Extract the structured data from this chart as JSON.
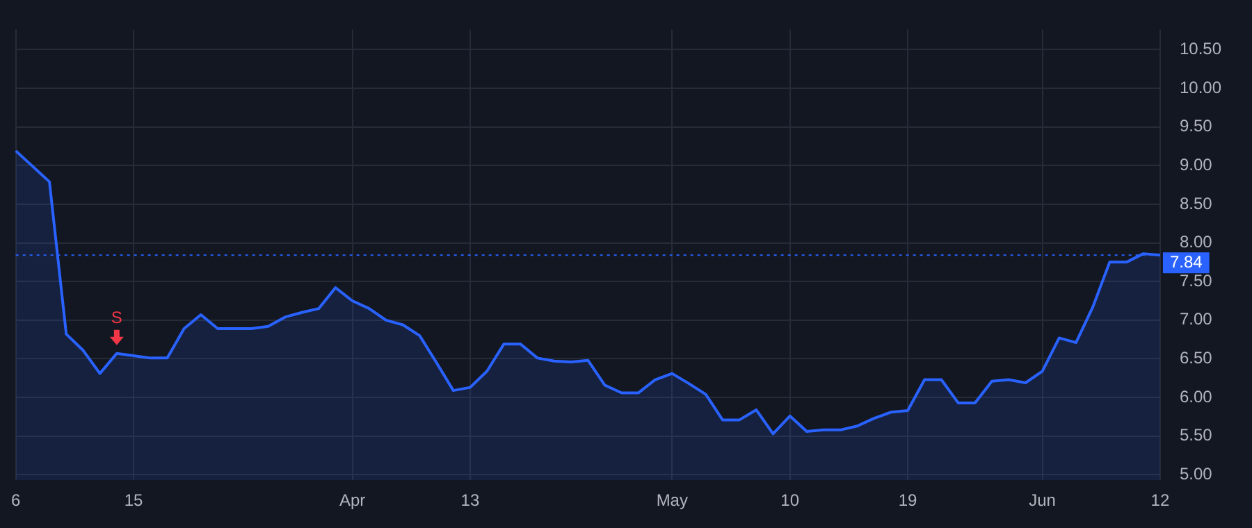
{
  "chart_data": {
    "type": "area",
    "categories": [
      "6",
      null,
      null,
      null,
      null,
      null,
      null,
      "15",
      null,
      null,
      null,
      null,
      null,
      null,
      null,
      null,
      null,
      null,
      null,
      null,
      "Apr",
      null,
      null,
      null,
      null,
      null,
      null,
      "13",
      null,
      null,
      null,
      null,
      null,
      null,
      null,
      null,
      null,
      null,
      null,
      "May",
      null,
      null,
      null,
      null,
      null,
      null,
      "10",
      null,
      null,
      null,
      null,
      null,
      null,
      "19",
      null,
      null,
      null,
      null,
      null,
      null,
      null,
      "Jun",
      null,
      null,
      null,
      null,
      null,
      null,
      "12"
    ],
    "series": [
      {
        "color": "#2962ff",
        "values": [
          9.19,
          8.99,
          8.79,
          6.82,
          6.61,
          6.31,
          6.57,
          6.54,
          6.51,
          6.51,
          6.89,
          7.07,
          6.89,
          6.89,
          6.89,
          6.92,
          7.04,
          7.1,
          7.15,
          7.42,
          7.25,
          7.15,
          7.0,
          6.94,
          6.8,
          6.45,
          6.09,
          6.13,
          6.34,
          6.69,
          6.69,
          6.51,
          6.47,
          6.46,
          6.48,
          6.16,
          6.06,
          6.06,
          6.23,
          6.31,
          6.18,
          6.04,
          5.71,
          5.71,
          5.84,
          5.53,
          5.76,
          5.56,
          5.58,
          5.58,
          5.63,
          5.73,
          5.81,
          5.83,
          6.23,
          6.23,
          5.93,
          5.93,
          6.21,
          6.23,
          6.19,
          6.34,
          6.77,
          6.71,
          7.17,
          7.75,
          7.75,
          7.86,
          7.84
        ]
      }
    ],
    "ylim": [
      4.93,
      10.76
    ],
    "yticks": [
      {
        "value": 5,
        "label": "5.00"
      },
      {
        "value": 5.5,
        "label": "5.50"
      },
      {
        "value": 6,
        "label": "6.00"
      },
      {
        "value": 6.5,
        "label": "6.50"
      },
      {
        "value": 7,
        "label": "7.00"
      },
      {
        "value": 7.5,
        "label": "7.50"
      },
      {
        "value": 8,
        "label": "8.00"
      },
      {
        "value": 8.5,
        "label": "8.50"
      },
      {
        "value": 9,
        "label": "9.00"
      },
      {
        "value": 9.5,
        "label": "9.50"
      },
      {
        "value": 10,
        "label": "10.00"
      },
      {
        "value": 10.5,
        "label": "10.50"
      }
    ],
    "ref_lines": [
      {
        "axis": "y",
        "value": 7.84,
        "label": "7.84",
        "color": "#2962ff",
        "line_style": "dotted"
      }
    ],
    "annotations": [
      {
        "text": "S",
        "y": 6.57
      }
    ],
    "grid": true,
    "legend": false,
    "marker": "none",
    "line_style": "solid"
  }
}
